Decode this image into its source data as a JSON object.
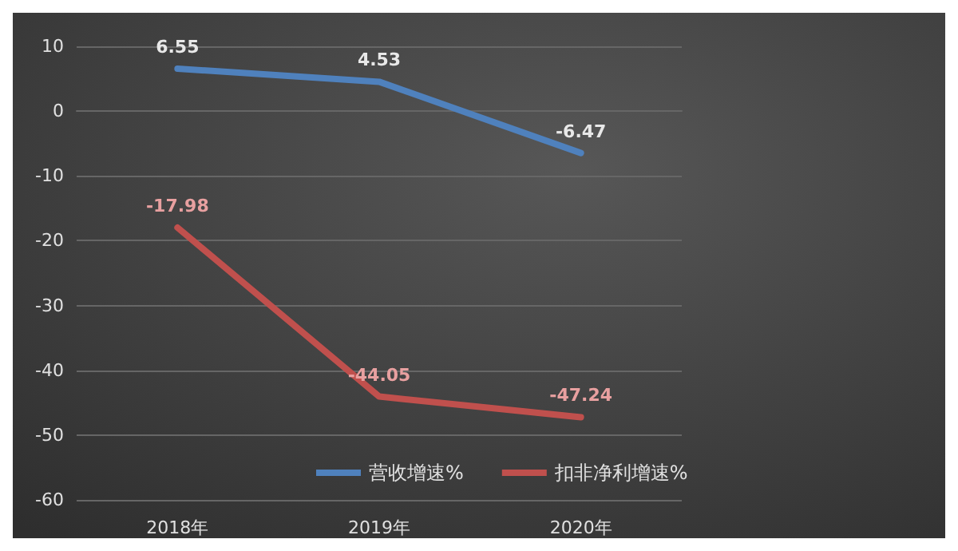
{
  "chart_data": {
    "type": "line",
    "categories": [
      "2018年",
      "2019年",
      "2020年"
    ],
    "series": [
      {
        "name": "营收增速%",
        "color": "#4f81bd",
        "values": [
          6.55,
          4.53,
          -6.47
        ]
      },
      {
        "name": "扣非净利增速%",
        "color": "#c0504d",
        "values": [
          -17.98,
          -44.05,
          -47.24
        ]
      }
    ],
    "ylim": [
      -60,
      10
    ],
    "yticks": [
      -60,
      -50,
      -40,
      -30,
      -20,
      -10,
      0,
      10
    ],
    "grid": "y",
    "legend": "bottom",
    "data_labels": true,
    "marker": "none",
    "line_style": "solid"
  }
}
